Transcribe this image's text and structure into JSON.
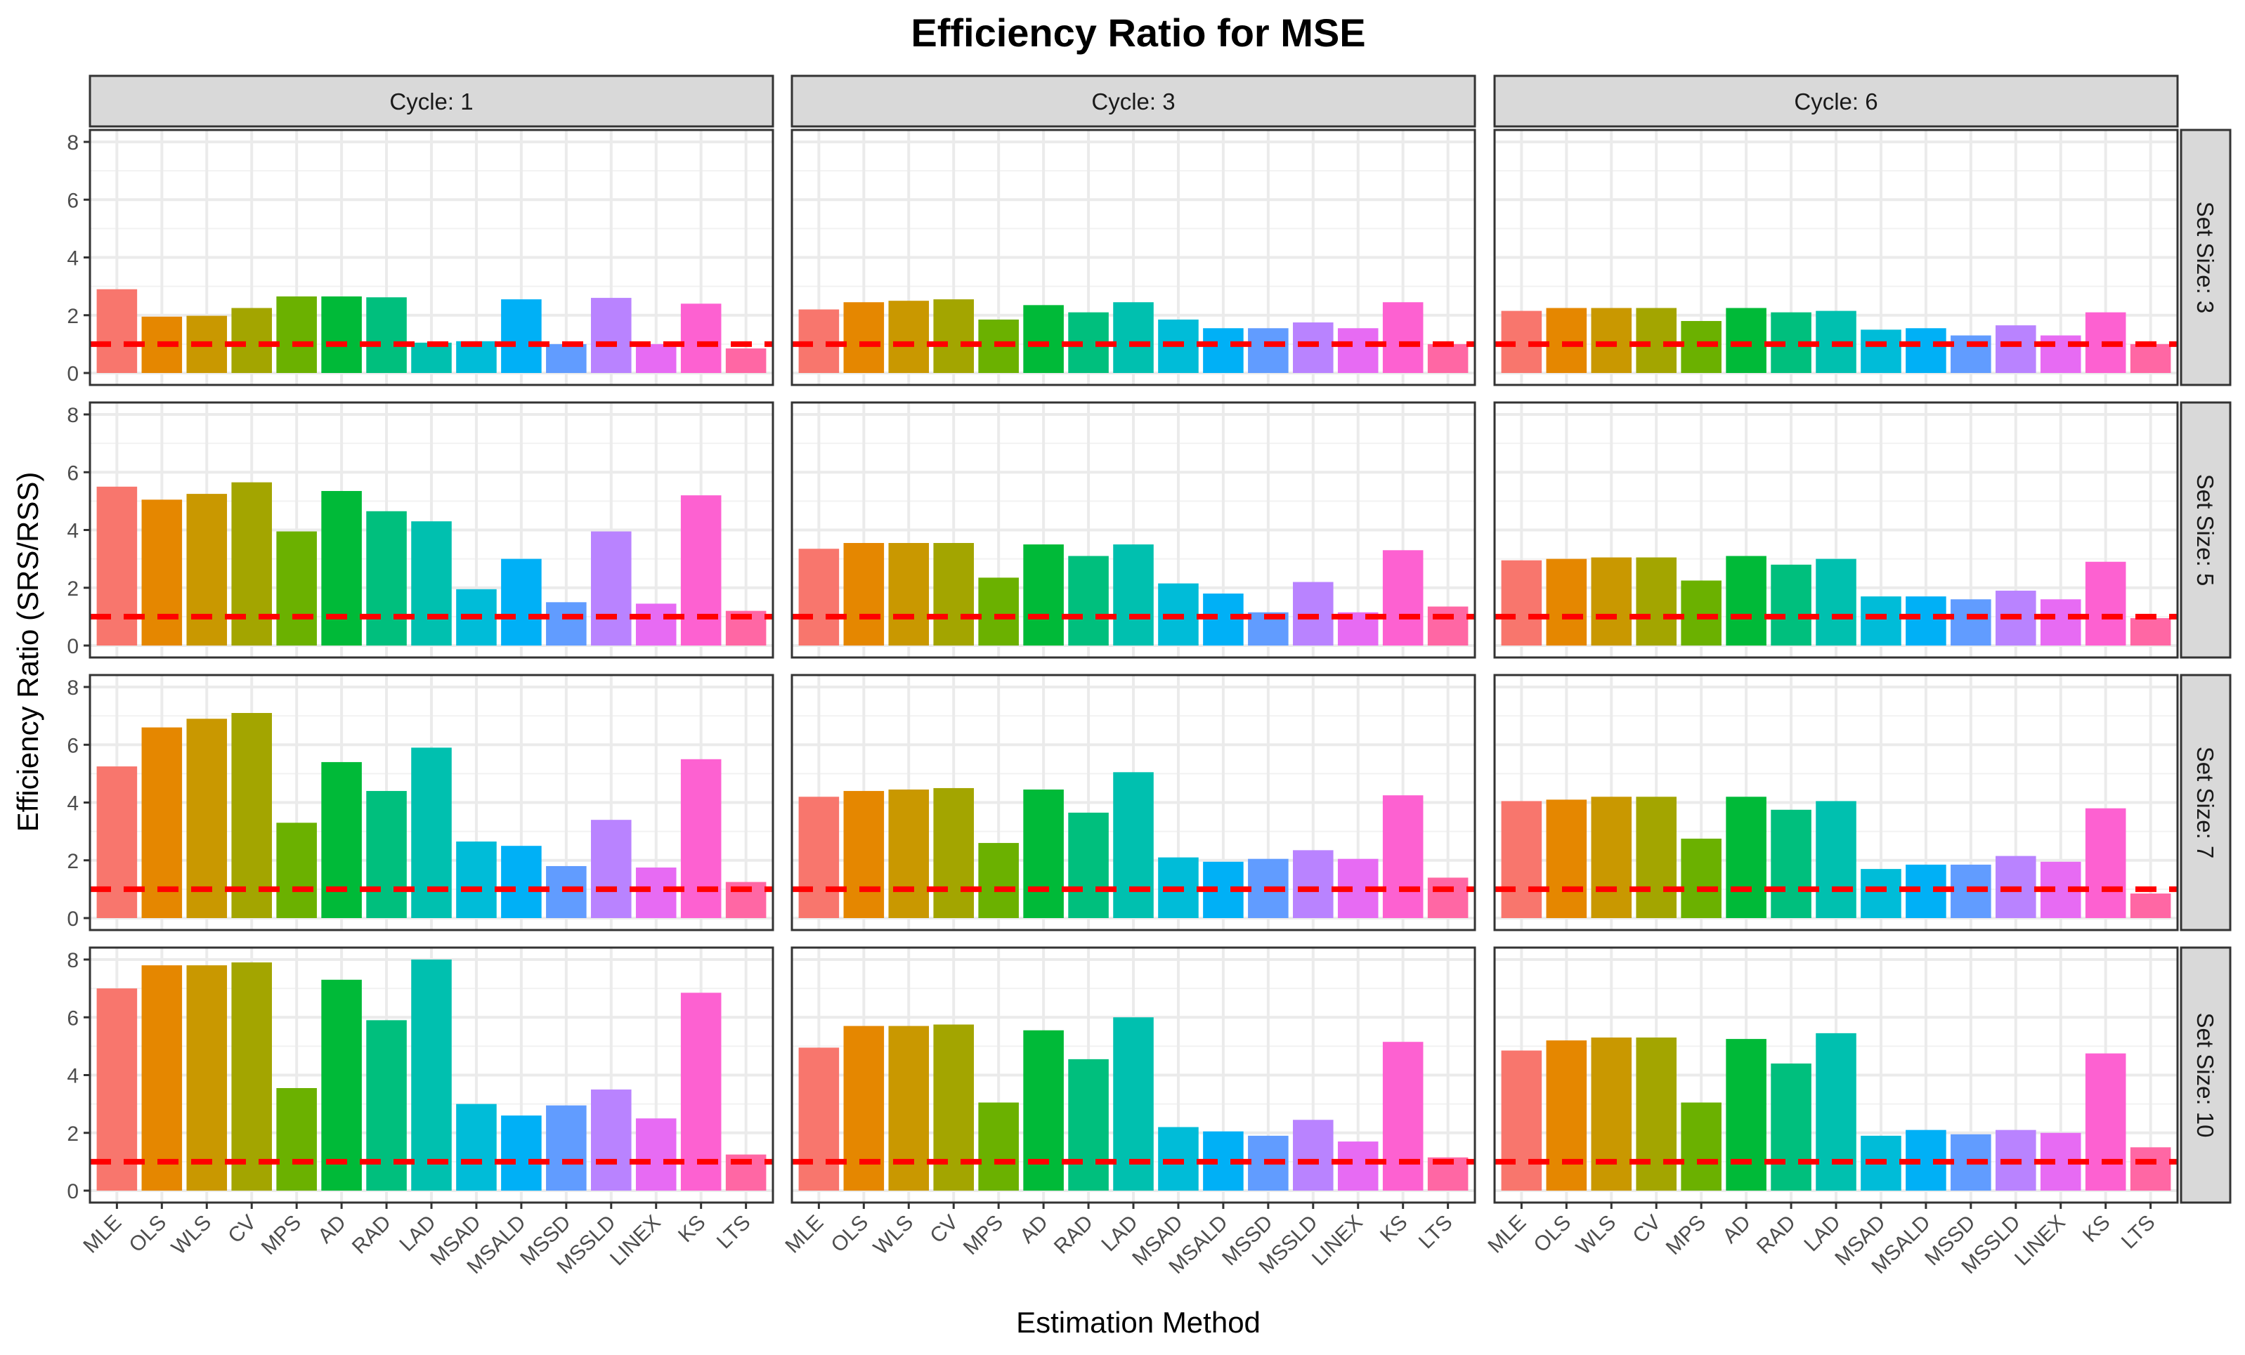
{
  "chart_data": {
    "type": "bar",
    "title": "Efficiency Ratio for MSE",
    "xlabel": "Estimation Method",
    "ylabel": "Efficiency Ratio (SRS/RSS)",
    "ylim": [
      0,
      8
    ],
    "yticks": [
      "0",
      "2",
      "4",
      "6",
      "8"
    ],
    "reference_line": {
      "value": 1,
      "color": "#FF0000",
      "style": "dashed"
    },
    "grid": true,
    "legend": "none",
    "categories": [
      "MLE",
      "OLS",
      "WLS",
      "CV",
      "MPS",
      "AD",
      "RAD",
      "LAD",
      "MSAD",
      "MSALD",
      "MSSD",
      "MSSLD",
      "LINEX",
      "KS",
      "LTS"
    ],
    "colors": [
      "#F8766D",
      "#E58700",
      "#C99800",
      "#A3A500",
      "#6BB100",
      "#00BA38",
      "#00BF7D",
      "#00C0AF",
      "#00BCD8",
      "#00B0F6",
      "#619CFF",
      "#B983FF",
      "#E76BF3",
      "#FD61D1",
      "#FF67A4"
    ],
    "columns": [
      "Cycle: 1",
      "Cycle: 3",
      "Cycle: 6"
    ],
    "rows": [
      "Set Size: 3",
      "Set Size: 5",
      "Set Size: 7",
      "Set Size: 10"
    ],
    "panels": [
      [
        [
          2.9,
          1.95,
          1.98,
          2.25,
          2.65,
          2.65,
          2.62,
          1.05,
          1.1,
          2.55,
          1.0,
          2.6,
          1.0,
          2.4,
          0.85
        ],
        [
          2.2,
          2.45,
          2.5,
          2.55,
          1.85,
          2.35,
          2.1,
          2.45,
          1.85,
          1.55,
          1.55,
          1.75,
          1.55,
          2.45,
          1.0
        ],
        [
          2.15,
          2.25,
          2.25,
          2.25,
          1.8,
          2.25,
          2.1,
          2.15,
          1.5,
          1.55,
          1.3,
          1.65,
          1.3,
          2.1,
          1.0
        ]
      ],
      [
        [
          5.5,
          5.05,
          5.25,
          5.65,
          3.95,
          5.35,
          4.65,
          4.3,
          1.95,
          3.0,
          1.5,
          3.95,
          1.45,
          5.2,
          1.2
        ],
        [
          3.35,
          3.55,
          3.55,
          3.55,
          2.35,
          3.5,
          3.1,
          3.5,
          2.15,
          1.8,
          1.15,
          2.2,
          1.15,
          3.3,
          1.35
        ],
        [
          2.95,
          3.0,
          3.05,
          3.05,
          2.25,
          3.1,
          2.8,
          3.0,
          1.7,
          1.7,
          1.6,
          1.9,
          1.6,
          2.9,
          0.95
        ]
      ],
      [
        [
          5.25,
          6.6,
          6.9,
          7.1,
          3.3,
          5.4,
          4.4,
          5.9,
          2.65,
          2.5,
          1.8,
          3.4,
          1.75,
          5.5,
          1.25
        ],
        [
          4.2,
          4.4,
          4.45,
          4.5,
          2.6,
          4.45,
          3.65,
          5.05,
          2.1,
          1.95,
          2.05,
          2.35,
          2.05,
          4.25,
          1.4
        ],
        [
          4.05,
          4.1,
          4.2,
          4.2,
          2.75,
          4.2,
          3.75,
          4.05,
          1.7,
          1.85,
          1.85,
          2.15,
          1.95,
          3.8,
          0.85
        ]
      ],
      [
        [
          7.0,
          7.8,
          7.8,
          7.9,
          3.55,
          7.3,
          5.9,
          8.0,
          3.0,
          2.6,
          2.95,
          3.5,
          2.5,
          6.85,
          1.25
        ],
        [
          4.95,
          5.7,
          5.7,
          5.75,
          3.05,
          5.55,
          4.55,
          6.0,
          2.2,
          2.05,
          1.9,
          2.45,
          1.7,
          5.15,
          1.15
        ],
        [
          4.85,
          5.2,
          5.3,
          5.3,
          3.05,
          5.25,
          4.4,
          5.45,
          1.9,
          2.1,
          1.95,
          2.1,
          2.0,
          4.75,
          1.5
        ]
      ]
    ]
  }
}
